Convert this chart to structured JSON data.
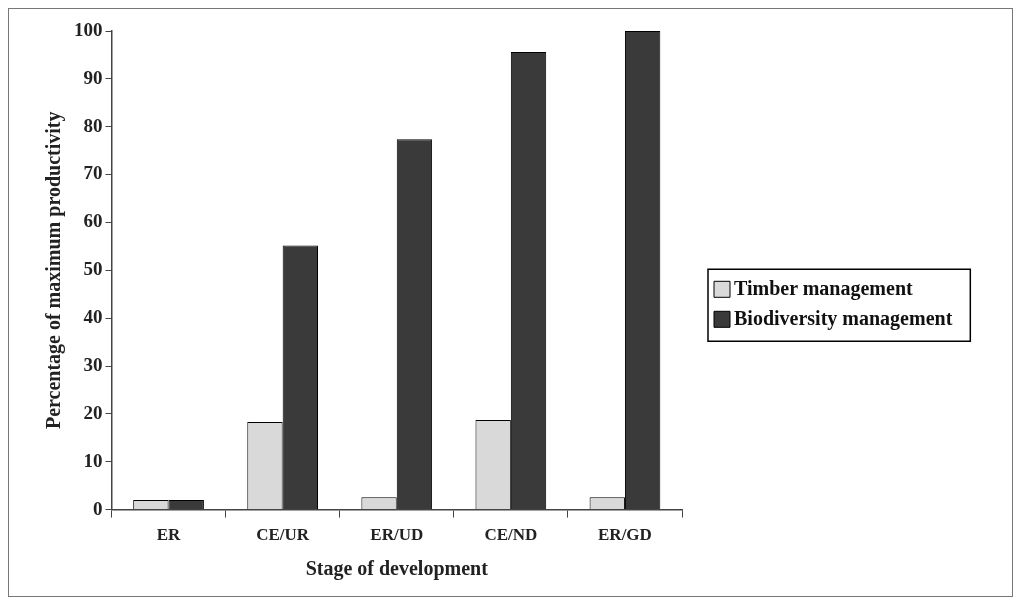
{
  "chart_data": {
    "type": "bar",
    "xlabel": "Stage of development",
    "ylabel": "Percentage of maximum productivity",
    "categories": [
      "ER",
      "CE/UR",
      "ER/UD",
      "CE/ND",
      "ER/GD"
    ],
    "series": [
      {
        "name": "Timber management",
        "color": "#d9d9d9",
        "values": [
          2,
          18.3,
          2.6,
          18.7,
          2.6
        ]
      },
      {
        "name": "Biodiversity management",
        "color": "#3a3a3a",
        "values": [
          2,
          55.2,
          77.4,
          95.6,
          100
        ]
      }
    ],
    "ylim": [
      0,
      100
    ],
    "yticks": [
      0,
      10,
      20,
      30,
      40,
      50,
      60,
      70,
      80,
      90,
      100
    ],
    "grid": false,
    "legend": "right"
  }
}
